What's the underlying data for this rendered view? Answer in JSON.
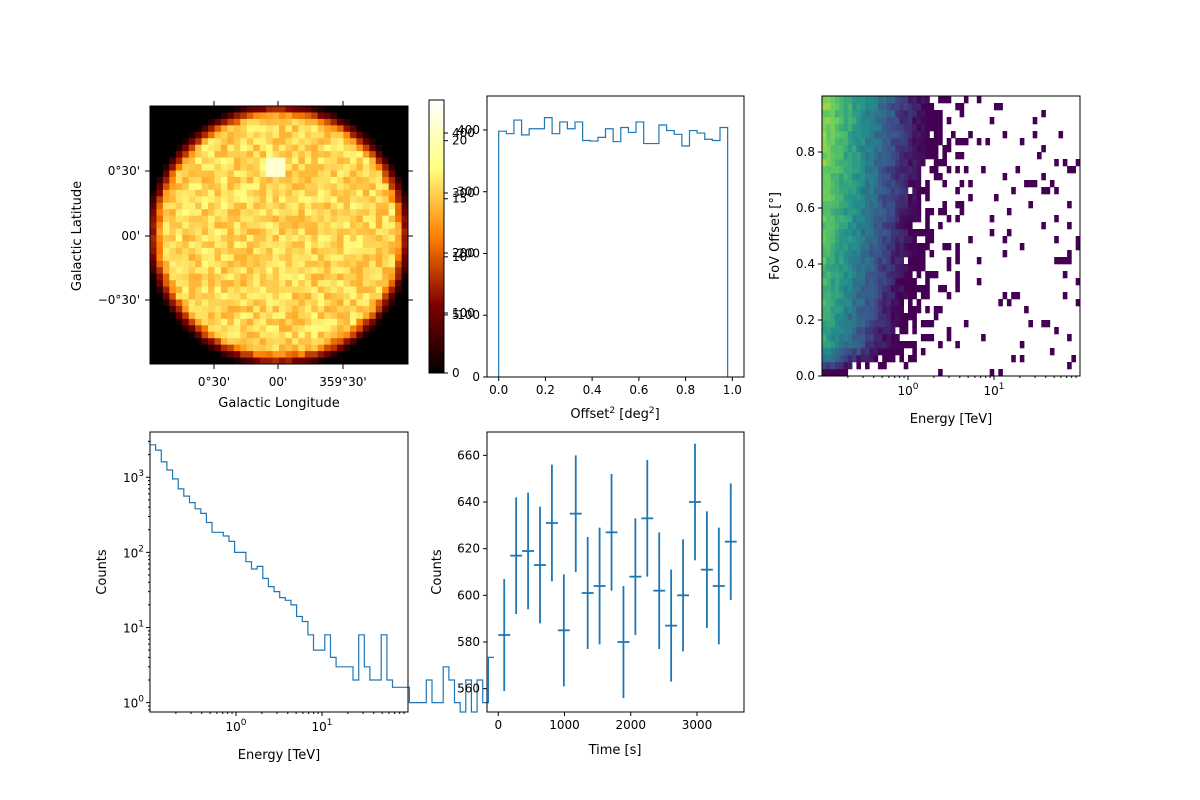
{
  "chart_data": [
    {
      "type": "heatmap",
      "panel": "sky-map",
      "xlabel": "Galactic Longitude",
      "ylabel": "Galactic Latitude",
      "xticks": [
        "0°30'",
        "00'",
        "359°30'"
      ],
      "yticks": [
        "0°30'",
        "00'",
        "−0°30'"
      ],
      "colormap": "afmhot",
      "colorbar": {
        "ticks_primary": [
          0,
          100,
          200,
          300,
          400
        ],
        "ticks_overlay": [
          5,
          10,
          15,
          20
        ]
      },
      "mean_counts_per_pixel": 300,
      "hotspot_counts": 400
    },
    {
      "type": "line",
      "style": "step",
      "panel": "offset-histogram",
      "xlabel": "Offset",
      "xlabel_sup": "2",
      "xlabel_unit": "[deg",
      "xlabel_unit_sup": "2",
      "xlabel_end": "]",
      "xlim": [
        -0.05,
        1.05
      ],
      "ylim": [
        0,
        455
      ],
      "xticks": [
        "0.0",
        "0.2",
        "0.4",
        "0.6",
        "0.8",
        "1.0"
      ],
      "yticks": [
        "0",
        "100",
        "200",
        "300",
        "400"
      ],
      "bin_edges": [
        0.0,
        0.0327,
        0.0653,
        0.098,
        0.1307,
        0.1633,
        0.196,
        0.2287,
        0.2613,
        0.294,
        0.3267,
        0.3593,
        0.392,
        0.4247,
        0.4573,
        0.49,
        0.5227,
        0.5553,
        0.588,
        0.6207,
        0.6533,
        0.686,
        0.7187,
        0.7513,
        0.784,
        0.8167,
        0.8493,
        0.882,
        0.9147,
        0.9473,
        0.98
      ],
      "values": [
        398,
        394,
        416,
        392,
        402,
        402,
        420,
        394,
        413,
        402,
        413,
        383,
        382,
        388,
        402,
        381,
        404,
        396,
        413,
        378,
        378,
        408,
        399,
        393,
        374,
        399,
        395,
        385,
        383,
        404,
        430
      ]
    },
    {
      "type": "heatmap",
      "panel": "energy-offset",
      "xlabel": "Energy [TeV]",
      "ylabel": "FoV Offset [°]",
      "xscale": "log",
      "xlim": [
        0.1,
        100
      ],
      "ylim": [
        0,
        1.0
      ],
      "xticks": [
        {
          "value": 1,
          "base": "10",
          "exp": "0"
        },
        {
          "value": 10,
          "base": "10",
          "exp": "1"
        }
      ],
      "yticks": [
        "0.0",
        "0.2",
        "0.4",
        "0.6",
        "0.8"
      ],
      "colormap": "viridis"
    },
    {
      "type": "line",
      "style": "step",
      "panel": "energy-histogram",
      "xlabel": "Energy [TeV]",
      "ylabel": "Counts",
      "xscale": "log",
      "yscale": "log",
      "xlim": [
        0.1,
        100
      ],
      "ylim": [
        0.75,
        4000
      ],
      "xticks": [
        {
          "value": 1,
          "base": "10",
          "exp": "0"
        },
        {
          "value": 10,
          "base": "10",
          "exp": "1"
        }
      ],
      "yticks": [
        {
          "value": 1,
          "base": "10",
          "exp": "0"
        },
        {
          "value": 10,
          "base": "10",
          "exp": "1"
        },
        {
          "value": 100,
          "base": "10",
          "exp": "2"
        },
        {
          "value": 1000,
          "base": "10",
          "exp": "3"
        }
      ],
      "log_bin_edges": [
        -1.0,
        3.0
      ],
      "values": [
        2700,
        2300,
        1600,
        1250,
        950,
        700,
        560,
        460,
        380,
        330,
        250,
        185,
        185,
        165,
        140,
        100,
        100,
        75,
        60,
        65,
        45,
        35,
        30,
        25,
        23,
        20,
        14,
        12,
        8,
        5,
        5,
        8,
        4,
        3,
        3,
        3,
        2,
        8,
        3,
        2,
        2,
        8,
        2,
        1.6,
        1.6,
        1.6,
        1.0,
        1.0,
        1.0,
        2.0,
        1.0,
        1.0,
        3.0,
        2.0,
        1.0,
        0.7,
        2.0,
        0.7,
        2.0,
        1.0,
        4.0
      ]
    },
    {
      "type": "scatter",
      "style": "errorbar",
      "panel": "light-curve",
      "xlabel": "Time [s]",
      "ylabel": "Counts",
      "xlim": [
        -170,
        3710
      ],
      "ylim": [
        550,
        670
      ],
      "xticks": [
        "0",
        "1000",
        "2000",
        "3000"
      ],
      "yticks": [
        "560",
        "580",
        "600",
        "620",
        "640",
        "660"
      ],
      "x": [
        90,
        270,
        450,
        630,
        810,
        990,
        1170,
        1350,
        1530,
        1710,
        1890,
        2070,
        2250,
        2430,
        2610,
        2790,
        2970,
        3150,
        3330,
        3510
      ],
      "values": [
        583,
        617,
        619,
        613,
        631,
        585,
        635,
        601,
        604,
        627,
        580,
        608,
        633,
        602,
        587,
        600,
        640,
        611,
        604,
        623
      ],
      "xerr": 90,
      "yerr": [
        24,
        25,
        25,
        25,
        25,
        24,
        25,
        24,
        25,
        25,
        24,
        25,
        25,
        25,
        24,
        24,
        25,
        25,
        25,
        25
      ]
    }
  ]
}
